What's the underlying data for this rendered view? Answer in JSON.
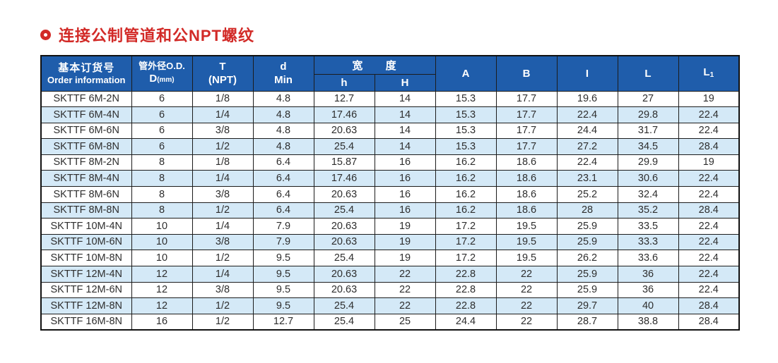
{
  "page": {
    "title": "连接公制管道和公NPT螺纹"
  },
  "colors": {
    "header_bg": "#1f5dab",
    "header_text": "#ffffff",
    "row_alt_bg": "#d4e9f7",
    "row_bg": "#ffffff",
    "title_red": "#d22a27",
    "border": "#1c1c1c",
    "body_text": "#2e2e2e"
  },
  "table": {
    "header": {
      "order_line1": "基本订货号",
      "order_line2": "Order information",
      "od_line1": "管外径O.D.",
      "od_line2_main": "D",
      "od_line2_sub": "(mm)",
      "t_line1": "T",
      "t_line2": "(NPT)",
      "d_line1": "d",
      "d_line2": "Min",
      "width_group": "宽 度",
      "width_sub_h": "h",
      "width_sub_H": "H",
      "col_a": "A",
      "col_b": "B",
      "col_i": "I",
      "col_l": "L",
      "col_l1_main": "L",
      "col_l1_sub": "1"
    },
    "rows": [
      [
        "SKTTF 6M-2N",
        "6",
        "1/8",
        "4.8",
        "12.7",
        "14",
        "15.3",
        "17.7",
        "19.6",
        "27",
        "19"
      ],
      [
        "SKTTF 6M-4N",
        "6",
        "1/4",
        "4.8",
        "17.46",
        "14",
        "15.3",
        "17.7",
        "22.4",
        "29.8",
        "22.4"
      ],
      [
        "SKTTF 6M-6N",
        "6",
        "3/8",
        "4.8",
        "20.63",
        "14",
        "15.3",
        "17.7",
        "24.4",
        "31.7",
        "22.4"
      ],
      [
        "SKTTF 6M-8N",
        "6",
        "1/2",
        "4.8",
        "25.4",
        "14",
        "15.3",
        "17.7",
        "27.2",
        "34.5",
        "28.4"
      ],
      [
        "SKTTF 8M-2N",
        "8",
        "1/8",
        "6.4",
        "15.87",
        "16",
        "16.2",
        "18.6",
        "22.4",
        "29.9",
        "19"
      ],
      [
        "SKTTF 8M-4N",
        "8",
        "1/4",
        "6.4",
        "17.46",
        "16",
        "16.2",
        "18.6",
        "23.1",
        "30.6",
        "22.4"
      ],
      [
        "SKTTF 8M-6N",
        "8",
        "3/8",
        "6.4",
        "20.63",
        "16",
        "16.2",
        "18.6",
        "25.2",
        "32.4",
        "22.4"
      ],
      [
        "SKTTF 8M-8N",
        "8",
        "1/2",
        "6.4",
        "25.4",
        "16",
        "16.2",
        "18.6",
        "28",
        "35.2",
        "28.4"
      ],
      [
        "SKTTF 10M-4N",
        "10",
        "1/4",
        "7.9",
        "20.63",
        "19",
        "17.2",
        "19.5",
        "25.9",
        "33.5",
        "22.4"
      ],
      [
        "SKTTF 10M-6N",
        "10",
        "3/8",
        "7.9",
        "20.63",
        "19",
        "17.2",
        "19.5",
        "25.9",
        "33.3",
        "22.4"
      ],
      [
        "SKTTF 10M-8N",
        "10",
        "1/2",
        "9.5",
        "25.4",
        "19",
        "17.2",
        "19.5",
        "26.2",
        "33.6",
        "22.4"
      ],
      [
        "SKTTF 12M-4N",
        "12",
        "1/4",
        "9.5",
        "20.63",
        "22",
        "22.8",
        "22",
        "25.9",
        "36",
        "22.4"
      ],
      [
        "SKTTF 12M-6N",
        "12",
        "3/8",
        "9.5",
        "20.63",
        "22",
        "22.8",
        "22",
        "25.9",
        "36",
        "22.4"
      ],
      [
        "SKTTF 12M-8N",
        "12",
        "1/2",
        "9.5",
        "25.4",
        "22",
        "22.8",
        "22",
        "29.7",
        "40",
        "28.4"
      ],
      [
        "SKTTF 16M-8N",
        "16",
        "1/2",
        "12.7",
        "25.4",
        "25",
        "24.4",
        "22",
        "28.7",
        "38.8",
        "28.4"
      ]
    ]
  }
}
